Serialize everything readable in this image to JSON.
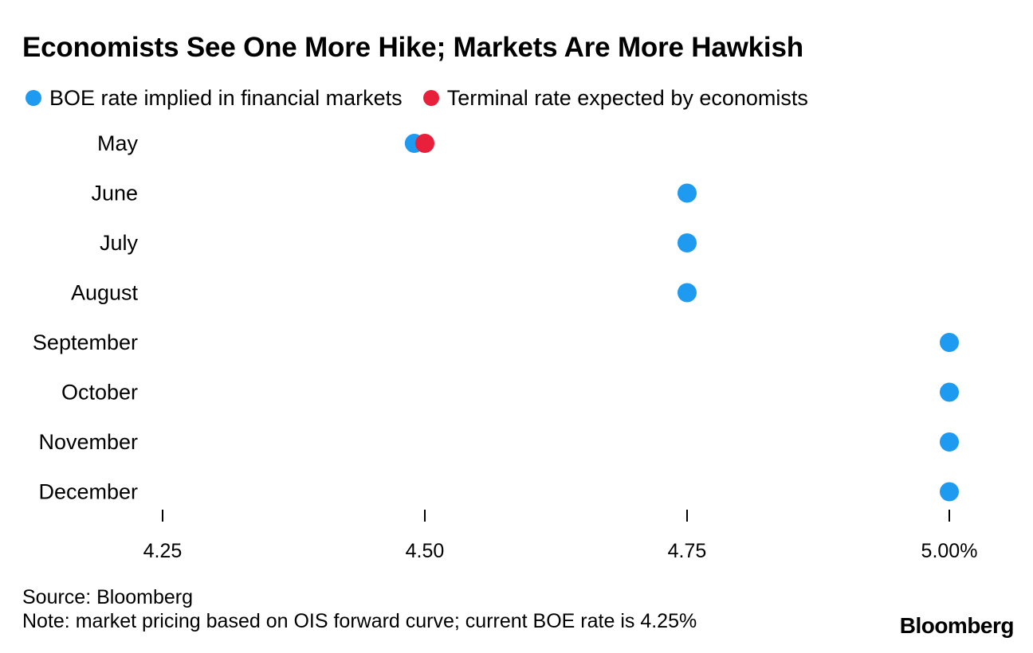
{
  "title": "Economists See One More Hike; Markets Are More Hawkish",
  "legend": [
    {
      "label": "BOE rate implied in financial markets",
      "color": "#1e9bf0"
    },
    {
      "label": "Terminal rate expected by economists",
      "color": "#e8203b"
    }
  ],
  "chart_data": {
    "type": "scatter",
    "title": "Economists See One More Hike; Markets Are More Hawkish",
    "xlabel": "",
    "ylabel": "",
    "categories": [
      "May",
      "June",
      "July",
      "August",
      "September",
      "October",
      "November",
      "December"
    ],
    "xlim": [
      4.25,
      5.0
    ],
    "xticks": [
      4.25,
      4.5,
      4.75,
      5.0
    ],
    "xtick_labels": [
      "4.25",
      "4.50",
      "4.75",
      "5.00%"
    ],
    "series": [
      {
        "name": "BOE rate implied in financial markets",
        "color": "#1e9bf0",
        "values": [
          4.49,
          4.75,
          4.75,
          4.75,
          5.0,
          5.0,
          5.0,
          5.0
        ]
      },
      {
        "name": "Terminal rate expected by economists",
        "color": "#e8203b",
        "values": [
          4.5,
          null,
          null,
          null,
          null,
          null,
          null,
          null
        ]
      }
    ],
    "grid": false
  },
  "footer": {
    "source": "Source: Bloomberg",
    "note": "Note: market pricing based on OIS forward curve; current BOE rate is 4.25%"
  },
  "logo": "Bloomberg"
}
